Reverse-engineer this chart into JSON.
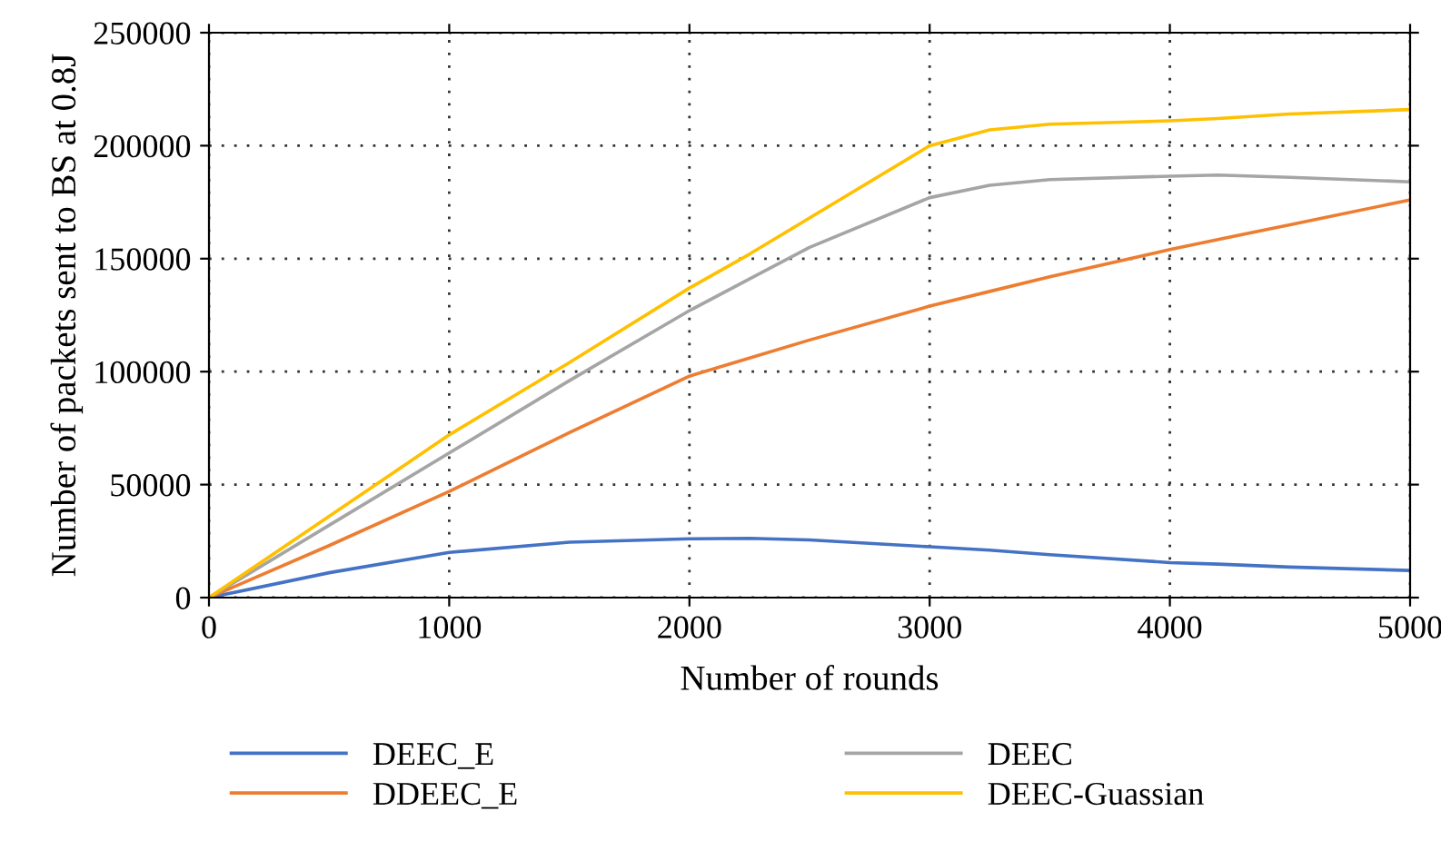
{
  "chart_data": {
    "type": "line",
    "xlabel": "Number of rounds",
    "ylabel": "Number of packets sent to BS at 0.8J",
    "x": [
      0,
      500,
      1000,
      1500,
      2000,
      2250,
      2500,
      3000,
      3250,
      3500,
      4000,
      4200,
      4500,
      5000
    ],
    "series": [
      {
        "name": "DEEC_E",
        "color": "#4472c4",
        "values": [
          0,
          11000,
          20000,
          24500,
          26000,
          26200,
          25500,
          22500,
          21000,
          19000,
          15500,
          14800,
          13500,
          12000
        ]
      },
      {
        "name": "DDEEC_E",
        "color": "#ed7d31",
        "values": [
          0,
          23000,
          47000,
          73000,
          98000,
          106000,
          114000,
          129000,
          135500,
          142000,
          154000,
          158500,
          165000,
          176000
        ]
      },
      {
        "name": "DEEC",
        "color": "#a5a5a5",
        "values": [
          0,
          32000,
          64000,
          96000,
          127000,
          141000,
          155000,
          177000,
          182500,
          185000,
          186500,
          187000,
          186000,
          184000
        ]
      },
      {
        "name": "DEEC-Guassian",
        "color": "#ffc000",
        "values": [
          0,
          36000,
          72000,
          104000,
          137000,
          152000,
          168000,
          200000,
          207000,
          209500,
          211000,
          212000,
          214000,
          216000
        ]
      }
    ],
    "xlim": [
      0,
      5000
    ],
    "xticks": [
      0,
      1000,
      2000,
      3000,
      4000,
      5000
    ],
    "ylim": [
      0,
      250000
    ],
    "yticks": [
      0,
      50000,
      100000,
      150000,
      200000,
      250000
    ],
    "grid": true,
    "legend": "bottom",
    "line_style": "solid",
    "marker": "none"
  }
}
